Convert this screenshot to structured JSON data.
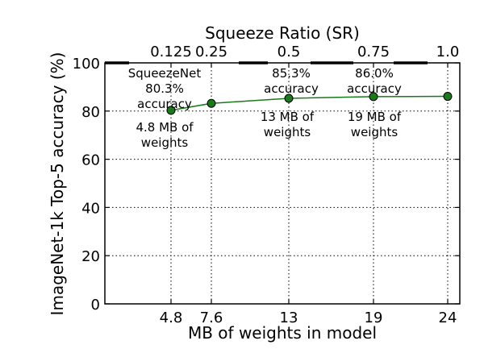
{
  "chart_data": {
    "type": "line",
    "xlabel": "MB of weights in model",
    "ylabel": "ImageNet-1k Top-5 accuracy (%)",
    "top_axis_label": "Squeeze Ratio (SR)",
    "x_ticks": [
      "4.8",
      "7.6",
      "13",
      "19",
      "24"
    ],
    "top_ticks": [
      "0.125",
      "0.25",
      "0.5",
      "0.75",
      "1.0"
    ],
    "y_ticks": [
      "0",
      "20",
      "40",
      "60",
      "80",
      "100"
    ],
    "ylim": [
      0,
      100
    ],
    "grid": "dotted, at x ticks and y ticks",
    "series": [
      {
        "color": "#1a7a1a",
        "x": [
          4.8,
          7.6,
          13,
          19,
          24
        ],
        "squeeze_ratio": [
          0.125,
          0.25,
          0.5,
          0.75,
          1.0
        ],
        "values": [
          80.3,
          83.2,
          85.3,
          86.0,
          86.1
        ]
      }
    ],
    "annotations": [
      {
        "id": "sqz-top",
        "lines": [
          "SqueezeNet",
          "80.3%",
          "accuracy"
        ]
      },
      {
        "id": "sqz-bottom",
        "lines": [
          "4.8 MB of",
          "weights"
        ]
      },
      {
        "id": "mid-top",
        "lines": [
          "85.3%",
          "accuracy"
        ]
      },
      {
        "id": "mid-bottom",
        "lines": [
          "13 MB of",
          "weights"
        ]
      },
      {
        "id": "right-top",
        "lines": [
          "86.0%",
          "accuracy"
        ]
      },
      {
        "id": "right-bottom",
        "lines": [
          "19 MB of",
          "weights"
        ]
      }
    ]
  }
}
